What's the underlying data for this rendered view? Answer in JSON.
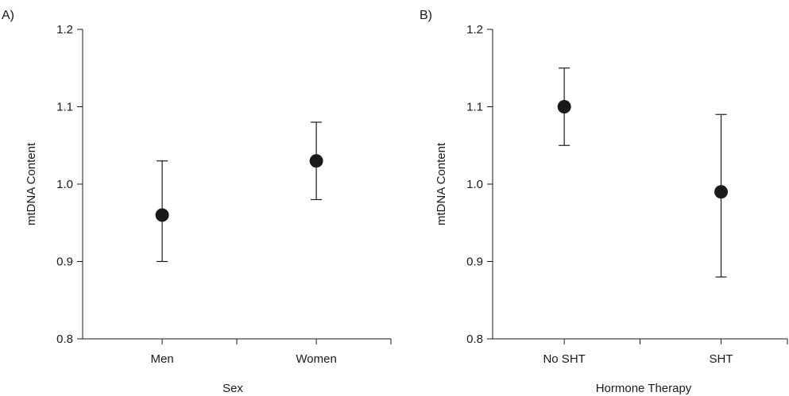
{
  "chart_data": [
    {
      "type": "scatter",
      "panel_label": "A)",
      "title": "",
      "xlabel": "Sex",
      "ylabel": "mtDNA Content",
      "ylim": [
        0.8,
        1.2
      ],
      "yticks": [
        "0.8",
        "0.9",
        "1.0",
        "1.1",
        "1.2"
      ],
      "categories": [
        "Men",
        "Women"
      ],
      "values": [
        0.96,
        1.03
      ],
      "error_low": [
        0.9,
        0.98
      ],
      "error_high": [
        1.03,
        1.08
      ],
      "grid": false,
      "marker_color": "#1a1a1a"
    },
    {
      "type": "scatter",
      "panel_label": "B)",
      "title": "",
      "xlabel": "Hormone Therapy",
      "ylabel": "mtDNA Content",
      "ylim": [
        0.8,
        1.2
      ],
      "yticks": [
        "0.8",
        "0.9",
        "1.0",
        "1.1",
        "1.2"
      ],
      "categories": [
        "No SHT",
        "SHT"
      ],
      "values": [
        1.1,
        0.99
      ],
      "error_low": [
        1.05,
        0.88
      ],
      "error_high": [
        1.15,
        1.09
      ],
      "grid": false,
      "marker_color": "#1a1a1a"
    }
  ]
}
